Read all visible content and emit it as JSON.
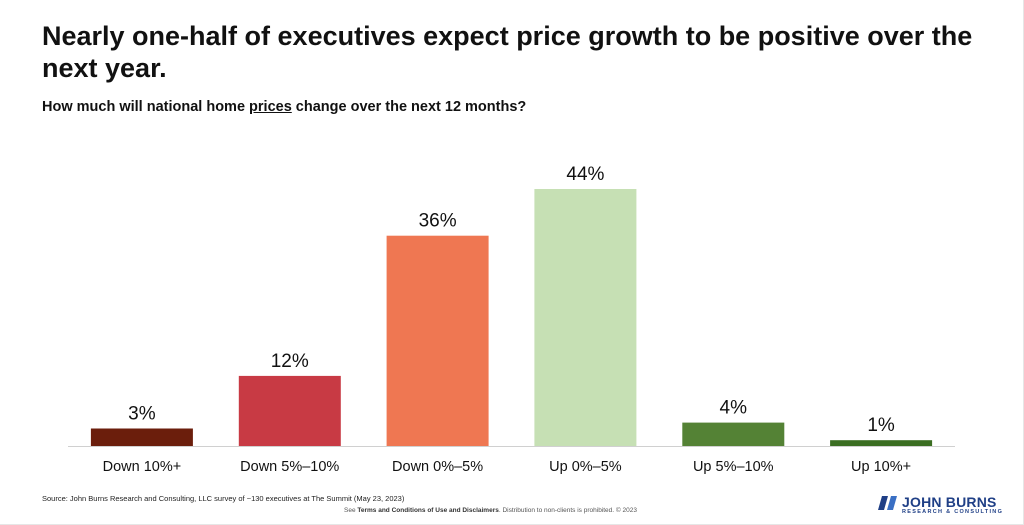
{
  "title": "Nearly one-half of executives expect price growth to be positive over the next year.",
  "subtitle_pre": "How much will national home ",
  "subtitle_emph": "prices",
  "subtitle_post": " change over the next 12 months?",
  "chart_data": {
    "type": "bar",
    "title": "How much will national home prices change over the next 12 months?",
    "categories": [
      "Down 10%+",
      "Down 5%–10%",
      "Down 0%–5%",
      "Up 0%–5%",
      "Up 5%–10%",
      "Up 10%+"
    ],
    "values": [
      3,
      12,
      36,
      44,
      4,
      1
    ],
    "value_labels": [
      "3%",
      "12%",
      "36%",
      "44%",
      "4%",
      "1%"
    ],
    "colors": [
      "#6b1e0c",
      "#c83a44",
      "#ef7752",
      "#c6e0b4",
      "#548235",
      "#3b6e22"
    ],
    "ylim": [
      0,
      44
    ],
    "xlabel": "",
    "ylabel": ""
  },
  "footer": {
    "source": "Source: John Burns Research and Consulting, LLC survey of ~130 executives at The Summit (May 23, 2023)",
    "terms_pre": "See ",
    "terms_bold": "Terms and Conditions of Use and Disclaimers",
    "terms_post": ". Distribution to non-clients is prohibited. © 2023"
  },
  "logo": {
    "name": "JOHN BURNS",
    "tagline": "RESEARCH & CONSULTING",
    "color": "#1f3f86"
  }
}
